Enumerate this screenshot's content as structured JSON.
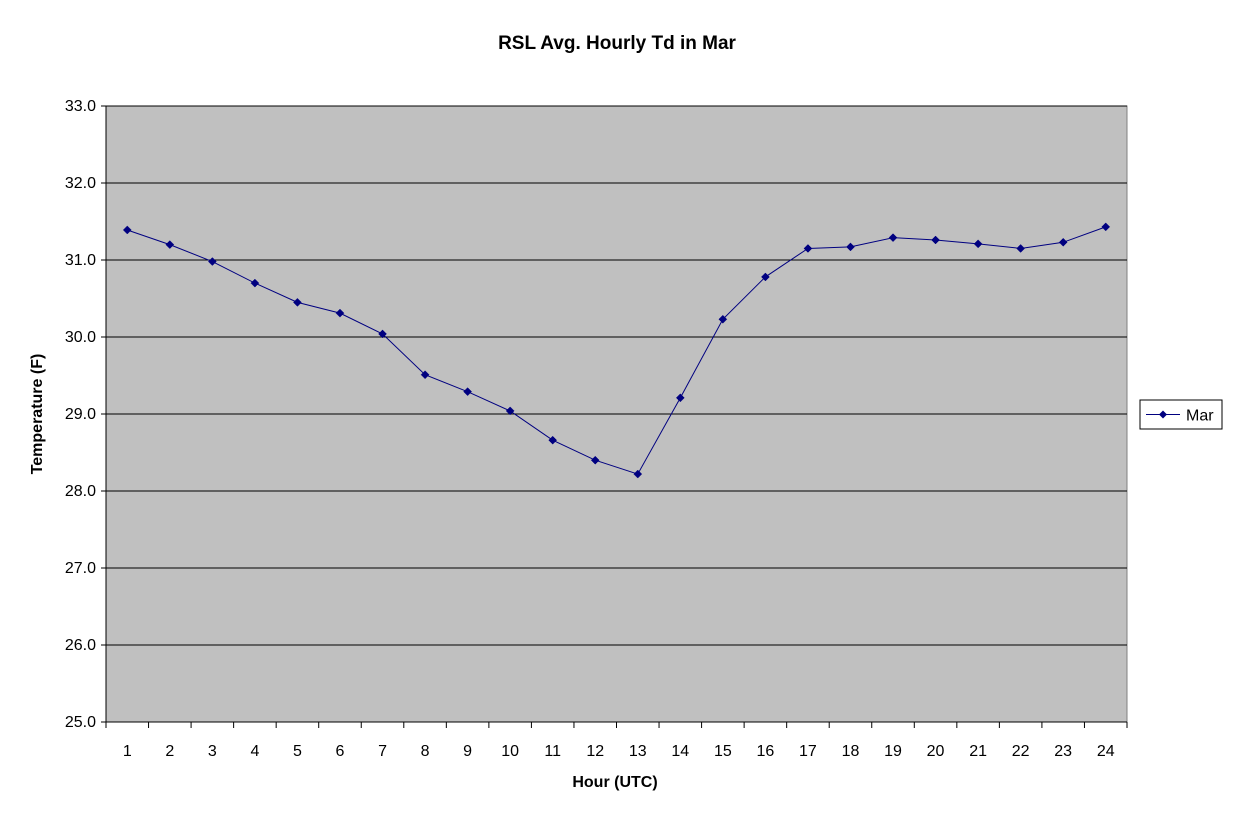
{
  "chart_data": {
    "type": "line",
    "title": "RSL Avg. Hourly Td in Mar",
    "xlabel": "Hour (UTC)",
    "ylabel": "Temperature (F)",
    "categories": [
      "1",
      "2",
      "3",
      "4",
      "5",
      "6",
      "7",
      "8",
      "9",
      "10",
      "11",
      "12",
      "13",
      "14",
      "15",
      "16",
      "17",
      "18",
      "19",
      "20",
      "21",
      "22",
      "23",
      "24"
    ],
    "ylim": [
      25.0,
      33.0
    ],
    "yticks": [
      "25.0",
      "26.0",
      "27.0",
      "28.0",
      "29.0",
      "30.0",
      "31.0",
      "32.0",
      "33.0"
    ],
    "grid": true,
    "legend_position": "right",
    "series": [
      {
        "name": "Mar",
        "color": "#000080",
        "marker": "diamond",
        "values": [
          31.39,
          31.2,
          30.98,
          30.7,
          30.45,
          30.31,
          30.04,
          29.51,
          29.29,
          29.04,
          28.66,
          28.4,
          28.22,
          29.21,
          30.23,
          30.78,
          31.15,
          31.17,
          31.29,
          31.26,
          31.21,
          31.15,
          31.23,
          31.43
        ]
      }
    ],
    "colors": {
      "plot_background": "#c0c0c0",
      "gridline": "#000000"
    }
  }
}
